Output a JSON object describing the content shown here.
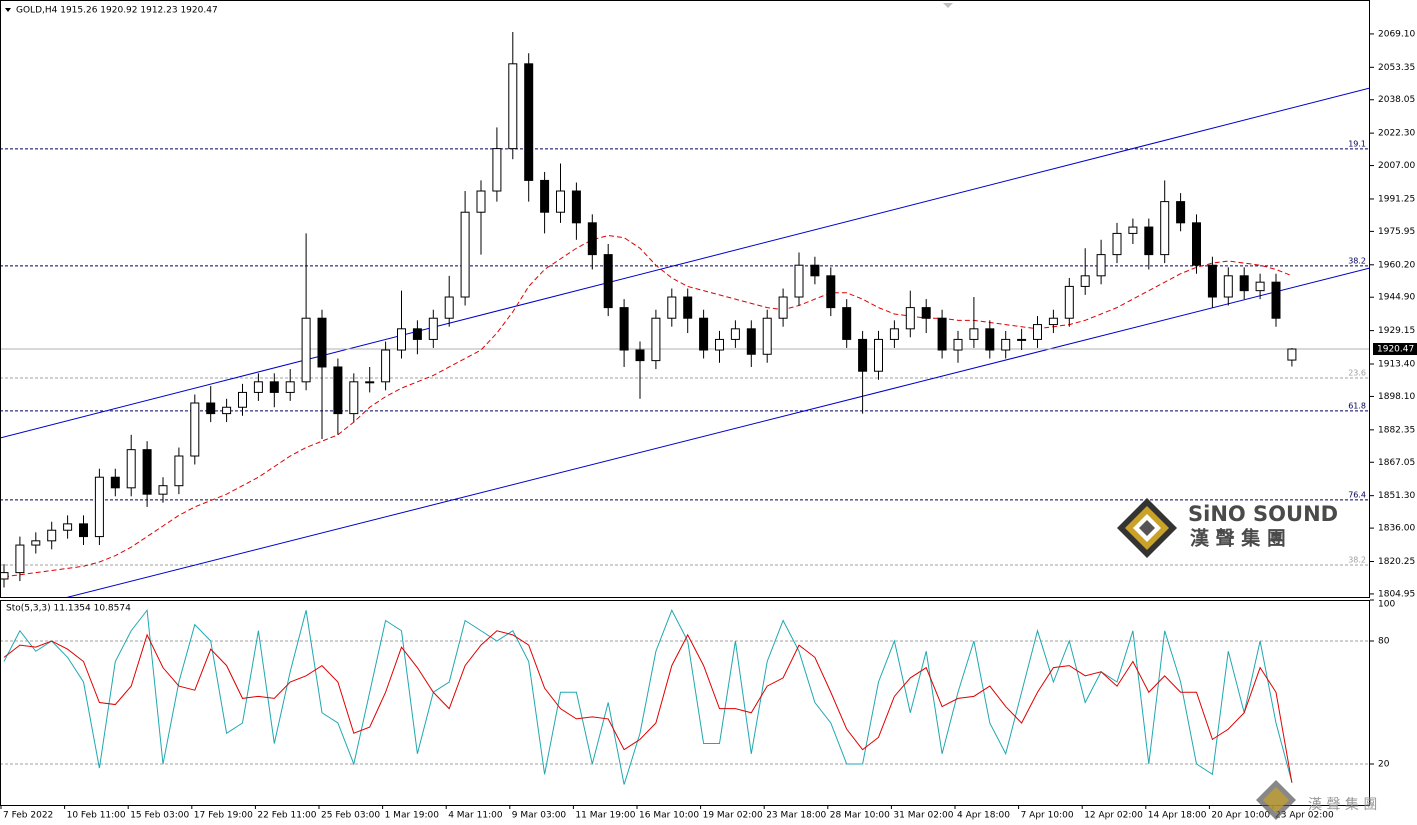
{
  "chart_data": [
    {
      "type": "candlestick",
      "title": "GOLD,H4  1915.26 1920.92 1912.23 1920.47",
      "x_labels": [
        "7 Feb 2022",
        "10 Feb 11:00",
        "15 Feb 03:00",
        "17 Feb 19:00",
        "22 Feb 11:00",
        "25 Feb 03:00",
        "1 Mar 19:00",
        "4 Mar 11:00",
        "9 Mar 03:00",
        "11 Mar 19:00",
        "16 Mar 10:00",
        "19 Mar 02:00",
        "23 Mar 18:00",
        "28 Mar 10:00",
        "31 Mar 02:00",
        "4 Apr 18:00",
        "7 Apr 10:00",
        "12 Apr 02:00",
        "14 Apr 18:00",
        "20 Apr 10:00",
        "23 Apr 02:00"
      ],
      "open": [
        1812,
        1815,
        1828,
        1830,
        1835,
        1838,
        1832,
        1860,
        1855,
        1873,
        1852,
        1856,
        1870,
        1895,
        1890,
        1893,
        1900,
        1905,
        1900,
        1905,
        1935,
        1912,
        1890,
        1905,
        1905,
        1920,
        1930,
        1925,
        1935,
        1945,
        1985,
        1995,
        2015,
        2055,
        2000,
        1985,
        1995,
        1980,
        1965,
        1940,
        1920,
        1915,
        1935,
        1945,
        1935,
        1920,
        1925,
        1930,
        1918,
        1935,
        1945,
        1960,
        1955,
        1940,
        1925,
        1910,
        1925,
        1930,
        1940,
        1935,
        1920,
        1925,
        1930,
        1920,
        1925,
        1925,
        1932,
        1935,
        1950,
        1955,
        1965,
        1975,
        1978,
        1965,
        1990,
        1980,
        1960,
        1945,
        1955,
        1948,
        1952,
        1915.26
      ],
      "high": [
        1819,
        1832,
        1834,
        1839,
        1842,
        1842,
        1864,
        1864,
        1880,
        1877,
        1860,
        1874,
        1899,
        1903,
        1897,
        1904,
        1909,
        1909,
        1911,
        1975,
        1939,
        1916,
        1909,
        1912,
        1924,
        1948,
        1934,
        1939,
        1955,
        1995,
        2000,
        2025,
        2070,
        2060,
        2004,
        2008,
        1999,
        1984,
        1970,
        1944,
        1924,
        1939,
        1949,
        1949,
        1939,
        1929,
        1934,
        1934,
        1939,
        1949,
        1966,
        1964,
        1959,
        1944,
        1929,
        1929,
        1934,
        1948,
        1944,
        1939,
        1929,
        1945,
        1934,
        1929,
        1930,
        1936,
        1939,
        1954,
        1968,
        1972,
        1980,
        1982,
        1982,
        2000,
        1994,
        1984,
        1964,
        1959,
        1959,
        1956,
        1956,
        1920.92
      ],
      "low": [
        1808,
        1811,
        1824,
        1826,
        1831,
        1828,
        1828,
        1851,
        1851,
        1846,
        1848,
        1852,
        1866,
        1886,
        1886,
        1889,
        1896,
        1893,
        1896,
        1901,
        1878,
        1880,
        1886,
        1900,
        1901,
        1916,
        1918,
        1921,
        1931,
        1941,
        1965,
        1990,
        2010,
        1990,
        1975,
        1980,
        1972,
        1958,
        1936,
        1912,
        1897,
        1911,
        1931,
        1928,
        1916,
        1914,
        1921,
        1912,
        1914,
        1931,
        1941,
        1951,
        1936,
        1921,
        1890,
        1906,
        1921,
        1926,
        1928,
        1916,
        1914,
        1921,
        1916,
        1916,
        1920,
        1921,
        1928,
        1931,
        1946,
        1951,
        1961,
        1970,
        1958,
        1961,
        1976,
        1956,
        1940,
        1941,
        1944,
        1944,
        1931,
        1912.23
      ],
      "close": [
        1815,
        1828,
        1830,
        1835,
        1838,
        1832,
        1860,
        1855,
        1873,
        1852,
        1856,
        1870,
        1895,
        1890,
        1893,
        1900,
        1905,
        1900,
        1905,
        1935,
        1912,
        1890,
        1905,
        1905,
        1920,
        1930,
        1925,
        1935,
        1945,
        1985,
        1995,
        2015,
        2055,
        2000,
        1985,
        1995,
        1980,
        1965,
        1940,
        1920,
        1915,
        1935,
        1945,
        1935,
        1920,
        1925,
        1930,
        1918,
        1935,
        1945,
        1960,
        1955,
        1940,
        1925,
        1910,
        1925,
        1930,
        1940,
        1935,
        1920,
        1925,
        1930,
        1920,
        1925,
        1925,
        1932,
        1935,
        1950,
        1955,
        1965,
        1975,
        1978,
        1965,
        1990,
        1980,
        1960,
        1945,
        1955,
        1948,
        1952,
        1935,
        1920.47
      ],
      "up_color": "#ffffff",
      "down_color": "#000000",
      "ma": {
        "color": "#e00000",
        "values": [
          1813,
          1814,
          1815,
          1816,
          1817,
          1818,
          1820,
          1823,
          1827,
          1832,
          1837,
          1842,
          1846,
          1849,
          1852,
          1856,
          1860,
          1865,
          1870,
          1874,
          1877,
          1880,
          1886,
          1893,
          1898,
          1902,
          1905,
          1908,
          1912,
          1916,
          1920,
          1928,
          1938,
          1950,
          1958,
          1963,
          1968,
          1972,
          1974,
          1973,
          1968,
          1960,
          1954,
          1950,
          1948,
          1946,
          1944,
          1942,
          1940,
          1939,
          1941,
          1944,
          1947,
          1947,
          1944,
          1940,
          1937,
          1936,
          1935,
          1935,
          1934,
          1934,
          1933,
          1932,
          1931,
          1930,
          1931,
          1932,
          1934,
          1937,
          1940,
          1944,
          1948,
          1952,
          1956,
          1959,
          1961,
          1962,
          1961,
          1960,
          1958,
          1955
        ]
      },
      "trendlines": [
        {
          "from": [
            0,
            1879
          ],
          "to": [
            81,
            2034.2
          ],
          "color": "#0000c8"
        },
        {
          "from": [
            0,
            1795.8
          ],
          "to": [
            81,
            1949.4
          ],
          "color": "#0000c8"
        }
      ],
      "levels": [
        {
          "level": 19.1,
          "price": 2014.9,
          "color": "#000060"
        },
        {
          "level": 38.2,
          "price": 1959.7,
          "color": "#000060"
        },
        {
          "level": 23.6,
          "price": 1906.8,
          "color": "#a0a0a0"
        },
        {
          "level": 61.8,
          "price": 1891.3,
          "color": "#000060"
        },
        {
          "level": 76.4,
          "price": 1849.3,
          "color": "#000060"
        },
        {
          "level": 38.2,
          "price": 1818.6,
          "color": "#a0a0a0"
        }
      ],
      "ylim": [
        1803.5,
        2085.1
      ],
      "yticks": [
        {
          "value": 2069.1,
          "label": "2069.10"
        },
        {
          "value": 2053.35,
          "label": "2053.35"
        },
        {
          "value": 2038.05,
          "label": "2038.05"
        },
        {
          "value": 2022.3,
          "label": "2022.30"
        },
        {
          "value": 2007,
          "label": "2007.00"
        },
        {
          "value": 1991.25,
          "label": "1991.25"
        },
        {
          "value": 1975.95,
          "label": "1975.95"
        },
        {
          "value": 1960.2,
          "label": "1960.20"
        },
        {
          "value": 1944.9,
          "label": "1944.90"
        },
        {
          "value": 1929.15,
          "label": "1929.15"
        },
        {
          "value": 1913.4,
          "label": "1913.40"
        },
        {
          "value": 1898.1,
          "label": "1898.10"
        },
        {
          "value": 1882.35,
          "label": "1882.35"
        },
        {
          "value": 1867.05,
          "label": "1867.05"
        },
        {
          "value": 1851.3,
          "label": "1851.30"
        },
        {
          "value": 1836,
          "label": "1836.00"
        },
        {
          "value": 1820.25,
          "label": "1820.25"
        },
        {
          "value": 1804.95,
          "label": "1804.95"
        }
      ],
      "watermark": {
        "brand": "SiNO SOUND",
        "chinese": "漢 聲 集 團"
      }
    },
    {
      "type": "line",
      "title": "Sto(5,3,3) 11.1354 10.8574",
      "series": [
        {
          "color": "#20a8b0",
          "values": [
            70,
            85,
            75,
            80,
            72,
            60,
            18,
            70,
            85,
            95,
            20,
            60,
            88,
            80,
            35,
            40,
            85,
            30,
            65,
            95,
            45,
            40,
            20,
            55,
            90,
            85,
            25,
            55,
            60,
            90,
            85,
            80,
            85,
            70,
            15,
            55,
            55,
            20,
            50,
            10,
            35,
            75,
            95,
            80,
            30,
            30,
            80,
            25,
            70,
            90,
            75,
            50,
            40,
            20,
            20,
            60,
            80,
            45,
            75,
            25,
            55,
            80,
            40,
            25,
            55,
            85,
            60,
            80,
            50,
            65,
            60,
            85,
            20,
            85,
            60,
            20,
            15,
            75,
            45,
            80,
            40,
            11.1354
          ]
        },
        {
          "color": "#e00000",
          "values": [
            72,
            78,
            77,
            80,
            76,
            70,
            50,
            49,
            58,
            83,
            67,
            58,
            56,
            76,
            68,
            52,
            53,
            52,
            60,
            63,
            68,
            60,
            35,
            38,
            55,
            77,
            67,
            55,
            47,
            68,
            78,
            85,
            83,
            78,
            57,
            47,
            42,
            43,
            42,
            27,
            32,
            40,
            68,
            83,
            68,
            47,
            47,
            45,
            58,
            62,
            78,
            72,
            55,
            37,
            27,
            33,
            53,
            62,
            67,
            48,
            52,
            53,
            58,
            48,
            40,
            55,
            67,
            68,
            63,
            65,
            58,
            70,
            55,
            63,
            55,
            55,
            32,
            37,
            45,
            67,
            55,
            10.8574
          ]
        }
      ],
      "ylim": [
        0,
        100
      ],
      "yticks": [
        20,
        80,
        100
      ],
      "levels": [
        20,
        80
      ]
    }
  ]
}
